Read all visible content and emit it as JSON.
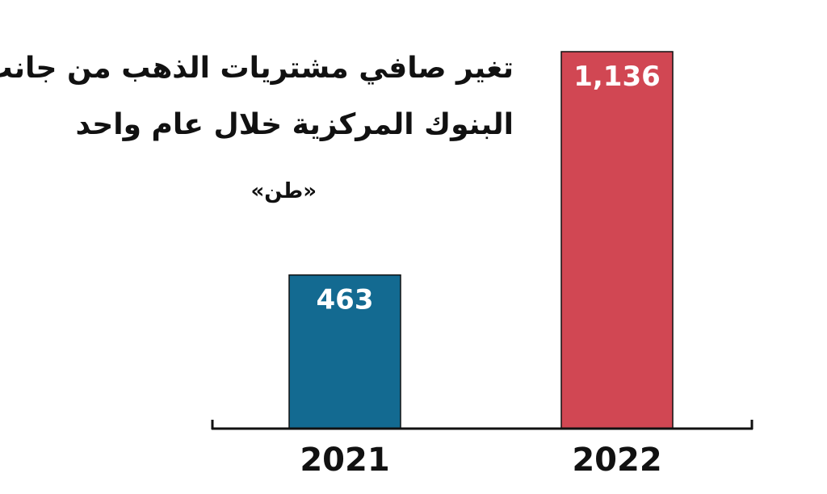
{
  "chart_data": {
    "type": "bar",
    "title_lines": [
      "تغير صافي مشتريات الذهب من جانب",
      "البنوك المركزية خلال عام واحد"
    ],
    "unit": "«طن»",
    "categories": [
      "2021",
      "2022"
    ],
    "values": [
      463,
      1136
    ],
    "value_labels": [
      "463",
      "1,136"
    ],
    "bar_colors": [
      "#136a91",
      "#d14753"
    ],
    "ylim": [
      0,
      1136
    ],
    "grid": false,
    "legend": "none"
  }
}
